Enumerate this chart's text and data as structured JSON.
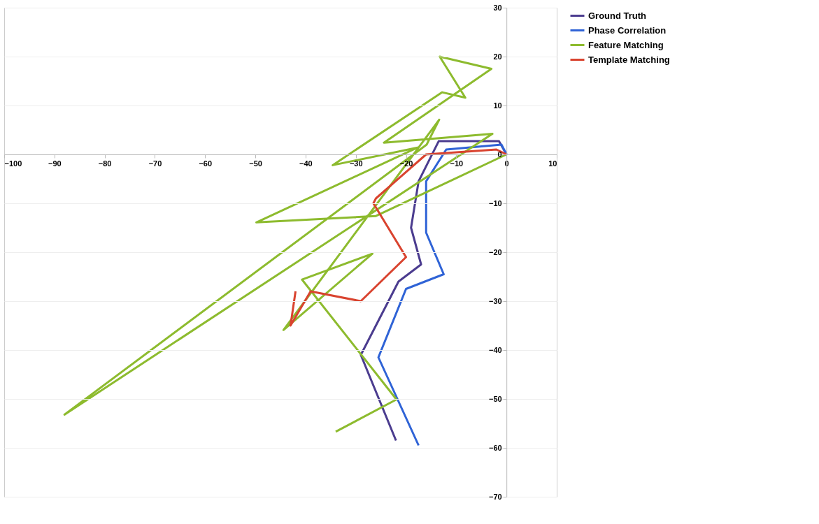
{
  "chart_data": {
    "type": "line",
    "xlim": [
      -100,
      10
    ],
    "ylim": [
      -70,
      30
    ],
    "xticks": [
      -100,
      -90,
      -80,
      -70,
      -60,
      -50,
      -40,
      -30,
      -20,
      -10,
      0,
      10
    ],
    "yticks": [
      -70,
      -60,
      -50,
      -40,
      -30,
      -20,
      -10,
      0,
      10,
      20,
      30
    ],
    "grid": "y",
    "legend": "right",
    "marker": "none",
    "line_style": "solid",
    "series": [
      {
        "name": "Ground Truth",
        "color": "#4b3c8f",
        "x": [
          0,
          -1.5,
          -13.5,
          -17.5,
          -19,
          -17,
          -21.5,
          -29,
          -22
        ],
        "values": [
          0,
          2.7,
          2.7,
          -5.5,
          -15,
          -22.5,
          -26,
          -41,
          -58.5
        ]
      },
      {
        "name": "Phase Correlation",
        "color": "#2f63d6",
        "x": [
          0,
          -1,
          -12,
          -16,
          -16,
          -12.5,
          -20,
          -25.5,
          -17.5
        ],
        "values": [
          0,
          2,
          1,
          -5.5,
          -16,
          -24.5,
          -27.5,
          -41.5,
          -59.5
        ]
      },
      {
        "name": "Feature Matching",
        "color": "#8dbb2e",
        "x": [
          0,
          -26,
          -49.8,
          -17.7,
          -34.6,
          -12.8,
          -8.2,
          -13.3,
          -3,
          -24.4,
          -2.8,
          -88,
          -15.9,
          -13.4,
          -44.4,
          -26.7,
          -40.7,
          -21.9,
          -34
        ],
        "values": [
          0,
          -12.6,
          -13.9,
          1.4,
          -2.2,
          12.7,
          11.6,
          20,
          17.5,
          2.4,
          4.2,
          -53.2,
          2,
          7.1,
          -35.9,
          -20.3,
          -25.6,
          -50.1,
          -56.7
        ]
      },
      {
        "name": "Template Matching",
        "color": "#d9432f",
        "x": [
          0,
          -2,
          -16,
          -26,
          -26.5,
          -20,
          -29,
          -39,
          -43,
          -42
        ],
        "values": [
          0,
          1,
          0,
          -9,
          -10,
          -21,
          -30,
          -28,
          -35,
          -28
        ]
      }
    ]
  }
}
